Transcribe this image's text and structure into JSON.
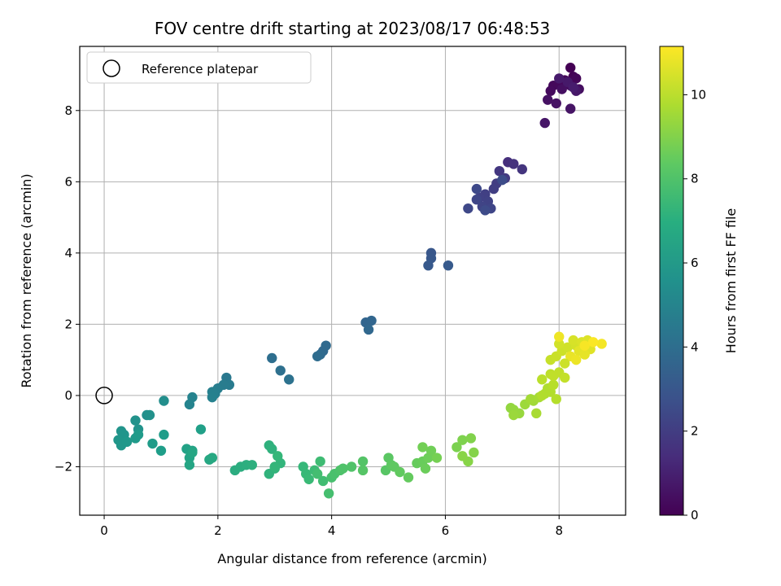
{
  "chart_data": {
    "type": "scatter",
    "title": "FOV centre drift starting at 2023/08/17 06:48:53",
    "xlabel": "Angular distance from reference (arcmin)",
    "ylabel": "Rotation from reference (arcmin)",
    "xlim": [
      -0.43,
      9.17
    ],
    "ylim": [
      -3.36,
      9.8
    ],
    "xticks": [
      0,
      2,
      4,
      6,
      8
    ],
    "yticks": [
      -2,
      0,
      2,
      4,
      6,
      8
    ],
    "grid": true,
    "colormap": "viridis",
    "colorbar": {
      "label": "Hours from first FF file",
      "range": [
        0,
        11.15
      ],
      "ticks": [
        0,
        2,
        4,
        6,
        8,
        10
      ]
    },
    "legend": {
      "position": "top-left",
      "entries": [
        {
          "label": "Reference platepar",
          "marker": "open-circle",
          "color": "#000000"
        }
      ]
    },
    "reference_point": {
      "x": 0,
      "y": 0
    },
    "points": [
      [
        8.2,
        9.2,
        0.0
      ],
      [
        8.25,
        8.95,
        0.05
      ],
      [
        8.1,
        8.85,
        0.1
      ],
      [
        8.3,
        8.9,
        0.15
      ],
      [
        8.0,
        8.75,
        0.2
      ],
      [
        7.9,
        8.7,
        0.25
      ],
      [
        7.85,
        8.55,
        0.3
      ],
      [
        8.2,
        8.7,
        0.35
      ],
      [
        8.35,
        8.6,
        0.4
      ],
      [
        8.05,
        8.6,
        0.45
      ],
      [
        7.8,
        8.3,
        0.5
      ],
      [
        7.95,
        8.2,
        0.55
      ],
      [
        8.2,
        8.05,
        0.6
      ],
      [
        7.75,
        7.65,
        0.65
      ],
      [
        8.3,
        8.55,
        0.7
      ],
      [
        8.15,
        8.8,
        0.75
      ],
      [
        8.0,
        8.9,
        0.8
      ],
      [
        8.25,
        8.65,
        0.85
      ],
      [
        7.1,
        6.55,
        1.5
      ],
      [
        7.2,
        6.5,
        1.6
      ],
      [
        7.35,
        6.35,
        1.7
      ],
      [
        6.95,
        6.3,
        1.8
      ],
      [
        7.05,
        6.1,
        1.9
      ],
      [
        6.9,
        5.95,
        2.0
      ],
      [
        6.85,
        5.8,
        2.05
      ],
      [
        6.7,
        5.65,
        2.1
      ],
      [
        6.6,
        5.55,
        2.15
      ],
      [
        6.75,
        5.45,
        2.2
      ],
      [
        6.65,
        5.3,
        2.25
      ],
      [
        6.8,
        5.25,
        2.3
      ],
      [
        6.55,
        5.5,
        2.35
      ],
      [
        6.4,
        5.25,
        2.4
      ],
      [
        6.55,
        5.8,
        2.45
      ],
      [
        6.7,
        5.2,
        2.5
      ],
      [
        7.0,
        6.05,
        2.55
      ],
      [
        5.75,
        4.0,
        3.0
      ],
      [
        5.75,
        3.85,
        3.05
      ],
      [
        5.7,
        3.65,
        3.1
      ],
      [
        6.05,
        3.65,
        3.15
      ],
      [
        4.6,
        2.05,
        3.6
      ],
      [
        4.7,
        2.1,
        3.65
      ],
      [
        4.65,
        1.85,
        3.7
      ],
      [
        3.85,
        1.25,
        3.75
      ],
      [
        3.9,
        1.4,
        3.8
      ],
      [
        3.8,
        1.15,
        3.85
      ],
      [
        3.75,
        1.1,
        3.9
      ],
      [
        2.95,
        1.05,
        4.0
      ],
      [
        3.1,
        0.7,
        4.1
      ],
      [
        3.25,
        0.45,
        4.2
      ],
      [
        2.15,
        0.5,
        4.5
      ],
      [
        2.2,
        0.3,
        4.6
      ],
      [
        2.1,
        0.3,
        4.65
      ],
      [
        2.0,
        0.2,
        4.7
      ],
      [
        1.95,
        0.05,
        4.8
      ],
      [
        1.9,
        0.1,
        4.85
      ],
      [
        1.9,
        -0.05,
        4.9
      ],
      [
        1.55,
        -0.05,
        5.0
      ],
      [
        1.5,
        -0.25,
        5.05
      ],
      [
        1.05,
        -0.15,
        5.5
      ],
      [
        0.75,
        -0.55,
        5.55
      ],
      [
        0.8,
        -0.55,
        5.6
      ],
      [
        0.55,
        -0.7,
        5.65
      ],
      [
        0.6,
        -0.95,
        5.7
      ],
      [
        0.3,
        -1.0,
        5.75
      ],
      [
        0.35,
        -1.1,
        5.8
      ],
      [
        0.25,
        -1.25,
        5.85
      ],
      [
        0.3,
        -1.4,
        5.9
      ],
      [
        0.4,
        -1.3,
        5.95
      ],
      [
        0.55,
        -1.2,
        6.0
      ],
      [
        0.6,
        -1.1,
        6.05
      ],
      [
        0.85,
        -1.35,
        6.1
      ],
      [
        1.05,
        -1.1,
        6.15
      ],
      [
        1.0,
        -1.55,
        6.2
      ],
      [
        1.7,
        -0.95,
        6.3
      ],
      [
        1.45,
        -1.5,
        6.4
      ],
      [
        1.55,
        -1.55,
        6.45
      ],
      [
        1.5,
        -1.75,
        6.5
      ],
      [
        1.5,
        -1.95,
        6.55
      ],
      [
        1.55,
        -1.6,
        6.6
      ],
      [
        1.85,
        -1.8,
        6.65
      ],
      [
        1.9,
        -1.75,
        6.7
      ],
      [
        2.3,
        -2.1,
        6.9
      ],
      [
        2.4,
        -2.0,
        6.95
      ],
      [
        2.5,
        -1.95,
        7.0
      ],
      [
        2.6,
        -1.95,
        7.05
      ],
      [
        2.9,
        -1.4,
        7.1
      ],
      [
        2.95,
        -1.5,
        7.15
      ],
      [
        2.9,
        -2.2,
        7.2
      ],
      [
        3.0,
        -2.05,
        7.25
      ],
      [
        3.1,
        -1.9,
        7.3
      ],
      [
        3.0,
        -2.0,
        7.35
      ],
      [
        3.05,
        -1.7,
        7.4
      ],
      [
        3.5,
        -2.0,
        7.45
      ],
      [
        3.55,
        -2.2,
        7.5
      ],
      [
        3.6,
        -2.35,
        7.55
      ],
      [
        3.7,
        -2.1,
        7.6
      ],
      [
        3.8,
        -1.85,
        7.65
      ],
      [
        3.85,
        -2.4,
        7.7
      ],
      [
        3.75,
        -2.2,
        7.75
      ],
      [
        3.95,
        -2.75,
        7.8
      ],
      [
        4.0,
        -2.3,
        7.85
      ],
      [
        4.05,
        -2.2,
        7.9
      ],
      [
        4.15,
        -2.1,
        7.95
      ],
      [
        4.2,
        -2.05,
        8.0
      ],
      [
        4.35,
        -2.0,
        8.05
      ],
      [
        4.55,
        -1.85,
        8.1
      ],
      [
        4.55,
        -2.1,
        8.15
      ],
      [
        4.95,
        -2.1,
        8.2
      ],
      [
        5.0,
        -1.75,
        8.25
      ],
      [
        5.05,
        -1.95,
        8.3
      ],
      [
        5.1,
        -2.0,
        8.35
      ],
      [
        5.2,
        -2.15,
        8.4
      ],
      [
        5.35,
        -2.3,
        8.45
      ],
      [
        5.5,
        -1.9,
        8.5
      ],
      [
        5.6,
        -1.85,
        8.55
      ],
      [
        5.65,
        -2.05,
        8.6
      ],
      [
        5.7,
        -1.75,
        8.65
      ],
      [
        5.75,
        -1.55,
        8.7
      ],
      [
        5.6,
        -1.45,
        8.75
      ],
      [
        5.85,
        -1.75,
        8.8
      ],
      [
        6.2,
        -1.45,
        8.9
      ],
      [
        6.3,
        -1.25,
        8.95
      ],
      [
        6.45,
        -1.2,
        9.0
      ],
      [
        6.5,
        -1.6,
        9.05
      ],
      [
        6.4,
        -1.85,
        9.1
      ],
      [
        6.3,
        -1.7,
        9.15
      ],
      [
        7.15,
        -0.35,
        9.3
      ],
      [
        7.2,
        -0.4,
        9.35
      ],
      [
        7.3,
        -0.5,
        9.4
      ],
      [
        7.2,
        -0.55,
        9.45
      ],
      [
        7.4,
        -0.25,
        9.5
      ],
      [
        7.55,
        -0.15,
        9.55
      ],
      [
        7.5,
        -0.1,
        9.6
      ],
      [
        7.65,
        -0.05,
        9.65
      ],
      [
        7.6,
        -0.5,
        9.7
      ],
      [
        7.75,
        0.05,
        9.75
      ],
      [
        7.8,
        0.2,
        9.8
      ],
      [
        7.85,
        0.1,
        9.85
      ],
      [
        7.95,
        -0.1,
        9.9
      ],
      [
        7.9,
        0.3,
        9.95
      ],
      [
        7.7,
        0.45,
        10.0
      ],
      [
        7.85,
        0.6,
        10.05
      ],
      [
        8.0,
        0.65,
        10.1
      ],
      [
        8.1,
        0.5,
        10.15
      ],
      [
        7.85,
        1.0,
        10.2
      ],
      [
        7.95,
        1.1,
        10.25
      ],
      [
        8.05,
        1.25,
        10.3
      ],
      [
        8.15,
        1.35,
        10.35
      ],
      [
        8.0,
        1.45,
        10.4
      ],
      [
        8.3,
        1.4,
        10.45
      ],
      [
        8.25,
        1.55,
        10.5
      ],
      [
        8.4,
        1.5,
        10.55
      ],
      [
        8.5,
        1.55,
        10.6
      ],
      [
        8.55,
        1.3,
        10.65
      ],
      [
        8.35,
        1.25,
        10.7
      ],
      [
        8.45,
        1.15,
        10.75
      ],
      [
        8.2,
        1.1,
        10.8
      ],
      [
        8.3,
        1.0,
        10.85
      ],
      [
        8.0,
        1.65,
        10.9
      ],
      [
        8.75,
        1.45,
        11.0
      ],
      [
        8.45,
        1.4,
        11.05
      ],
      [
        8.6,
        1.5,
        11.1
      ],
      [
        7.7,
        0.0,
        9.85
      ],
      [
        7.9,
        0.55,
        10.1
      ],
      [
        8.1,
        0.9,
        10.3
      ]
    ]
  }
}
